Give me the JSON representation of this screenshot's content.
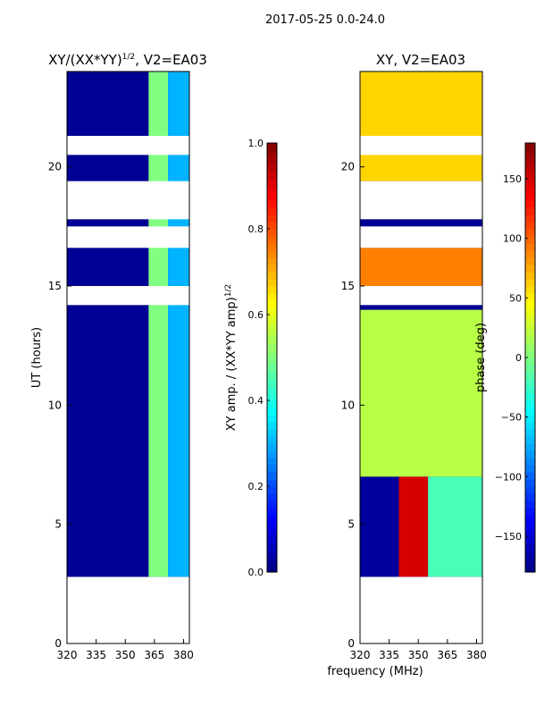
{
  "figure": {
    "suptitle": "2017-05-25 0.0-24.0",
    "xlabel": "frequency (MHz)"
  },
  "colors": {
    "axis": "#000000",
    "gap": "#ffffff",
    "background": "#ffffff"
  },
  "chart_data": [
    {
      "type": "heatmap",
      "title_main": "XY/(XX*YY)",
      "title_sup": "1/2",
      "title_rest": ", V2=EA03",
      "xlabel": "",
      "ylabel": "UT (hours)",
      "xlim": [
        320,
        383
      ],
      "ylim": [
        0,
        24
      ],
      "xticks": [
        320,
        335,
        350,
        365,
        380
      ],
      "yticks": [
        0,
        5,
        10,
        15,
        20
      ],
      "colorbar": {
        "label_main": "XY amp. / (XX*YY amp)",
        "label_sup": "1/2",
        "range": [
          0.0,
          1.0
        ],
        "ticks": [
          "0.0",
          "0.2",
          "0.4",
          "0.6",
          "0.8",
          "1.0"
        ]
      },
      "data_rows_hours": [
        [
          2.8,
          24.0
        ]
      ],
      "gaps_hours": [
        [
          17.8,
          19.4
        ],
        [
          14.2,
          15.0
        ],
        [
          16.6,
          17.5
        ],
        [
          20.5,
          21.3
        ]
      ],
      "bands": [
        {
          "f_range": [
            320,
            362
          ],
          "level": 0.02
        },
        {
          "f_range": [
            362,
            372
          ],
          "level": 0.5
        },
        {
          "f_range": [
            372,
            383
          ],
          "level": 0.3
        }
      ]
    },
    {
      "type": "heatmap",
      "title_main": "XY, V2=EA03",
      "xlabel": "",
      "ylabel": "",
      "xlim": [
        320,
        383
      ],
      "ylim": [
        0,
        24
      ],
      "xticks": [
        320,
        335,
        350,
        365,
        380
      ],
      "yticks": [
        0,
        5,
        10,
        15,
        20
      ],
      "colorbar": {
        "label_main": "phase (deg)",
        "range": [
          -180,
          180
        ],
        "ticks": [
          "-150",
          "-100",
          "-50",
          "0",
          "50",
          "100",
          "150"
        ]
      },
      "data_rows_hours": [
        [
          2.8,
          24.0
        ]
      ],
      "gaps_hours": [
        [
          17.8,
          19.4
        ],
        [
          14.2,
          15.0
        ],
        [
          16.6,
          17.5
        ],
        [
          20.5,
          21.3
        ]
      ],
      "regions": [
        {
          "t_range": [
            2.8,
            7.0
          ],
          "f_range": [
            340,
            355
          ],
          "level": 150
        },
        {
          "t_range": [
            2.8,
            7.0
          ],
          "f_range": [
            320,
            340
          ],
          "level": -170
        },
        {
          "t_range": [
            2.8,
            7.0
          ],
          "f_range": [
            355,
            383
          ],
          "level": -20
        },
        {
          "t_range": [
            7.0,
            14.0
          ],
          "f_range": [
            320,
            383
          ],
          "level": 20
        },
        {
          "t_range": [
            15.0,
            16.6
          ],
          "f_range": [
            320,
            383
          ],
          "level": 90
        },
        {
          "t_range": [
            19.4,
            24.0
          ],
          "f_range": [
            320,
            383
          ],
          "level": 60
        }
      ]
    }
  ]
}
